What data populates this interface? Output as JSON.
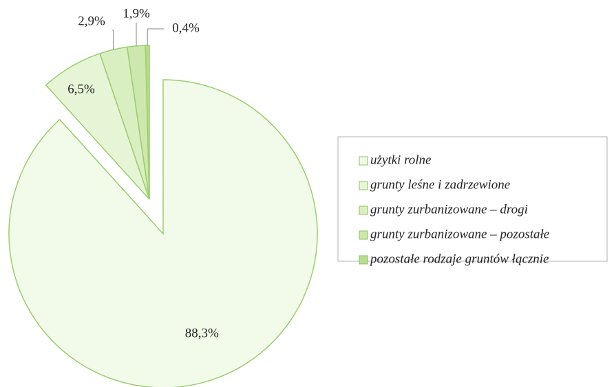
{
  "chart_data": {
    "type": "pie",
    "categories": [
      "użytki rolne",
      "grunty leśne i zadrzewione",
      "grunty zurbanizowane – drogi",
      "grunty zurbanizowane – pozostałe",
      "pozostałe rodzaje gruntów łącznie"
    ],
    "values": [
      88.3,
      6.5,
      2.9,
      1.9,
      0.4
    ],
    "value_labels": [
      "88,3%",
      "6,5%",
      "2,9%",
      "1,9%",
      "0,4%"
    ],
    "colors": [
      "#f2fae9",
      "#e6f5d6",
      "#d9efc2",
      "#cde8ae",
      "#b9dc92"
    ],
    "legend": "right"
  }
}
